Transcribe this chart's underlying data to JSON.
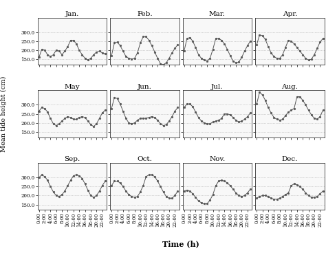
{
  "months": [
    "Jan.",
    "Feb.",
    "Mar.",
    "Apr.",
    "May",
    "Jun.",
    "Jul.",
    "Aug.",
    "Sep.",
    "Oct.",
    "Nov.",
    "Dec."
  ],
  "time_hours": [
    0,
    1,
    2,
    3,
    4,
    5,
    6,
    7,
    8,
    9,
    10,
    11,
    12,
    13,
    14,
    15,
    16,
    17,
    18,
    19,
    20,
    21,
    22,
    23
  ],
  "tide_data": {
    "Jan.": [
      160,
      205,
      200,
      175,
      165,
      175,
      200,
      195,
      175,
      195,
      220,
      255,
      255,
      235,
      200,
      175,
      155,
      145,
      155,
      175,
      190,
      195,
      185,
      180
    ],
    "Feb.": [
      170,
      240,
      245,
      225,
      195,
      165,
      155,
      150,
      155,
      185,
      240,
      275,
      275,
      255,
      225,
      190,
      155,
      125,
      120,
      130,
      155,
      185,
      210,
      230
    ],
    "Mar.": [
      195,
      265,
      270,
      250,
      215,
      175,
      155,
      145,
      140,
      155,
      205,
      265,
      265,
      255,
      235,
      205,
      170,
      140,
      130,
      135,
      160,
      195,
      225,
      250
    ],
    "Apr.": [
      230,
      285,
      280,
      260,
      220,
      185,
      165,
      155,
      155,
      175,
      215,
      255,
      250,
      235,
      215,
      195,
      175,
      155,
      145,
      150,
      175,
      210,
      245,
      265
    ],
    "May": [
      265,
      285,
      280,
      260,
      225,
      195,
      185,
      195,
      210,
      225,
      235,
      230,
      220,
      220,
      230,
      235,
      230,
      210,
      190,
      180,
      195,
      225,
      255,
      270
    ],
    "Jun.": [
      280,
      340,
      335,
      305,
      265,
      225,
      200,
      195,
      200,
      215,
      225,
      225,
      225,
      230,
      235,
      230,
      215,
      195,
      185,
      190,
      210,
      235,
      265,
      285
    ],
    "Jul.": [
      285,
      305,
      305,
      290,
      260,
      230,
      210,
      200,
      195,
      195,
      205,
      210,
      215,
      225,
      250,
      250,
      245,
      230,
      215,
      205,
      210,
      220,
      235,
      255
    ],
    "Aug.": [
      305,
      370,
      355,
      325,
      285,
      255,
      230,
      220,
      215,
      220,
      240,
      260,
      270,
      280,
      345,
      345,
      325,
      300,
      270,
      245,
      225,
      220,
      235,
      270
    ],
    "Sep.": [
      300,
      315,
      305,
      285,
      250,
      220,
      200,
      195,
      205,
      225,
      255,
      285,
      310,
      315,
      310,
      295,
      265,
      230,
      200,
      190,
      200,
      225,
      255,
      280
    ],
    "Oct.": [
      255,
      280,
      280,
      270,
      250,
      225,
      205,
      195,
      190,
      195,
      220,
      255,
      305,
      315,
      315,
      305,
      280,
      250,
      220,
      195,
      185,
      185,
      200,
      225
    ],
    "Nov.": [
      225,
      230,
      225,
      210,
      190,
      170,
      160,
      155,
      155,
      175,
      205,
      255,
      280,
      285,
      280,
      270,
      255,
      235,
      215,
      200,
      195,
      200,
      215,
      235
    ],
    "Dec.": [
      185,
      195,
      200,
      200,
      195,
      185,
      180,
      180,
      185,
      195,
      205,
      215,
      255,
      265,
      260,
      250,
      235,
      215,
      200,
      190,
      190,
      195,
      210,
      225
    ]
  },
  "ylim": [
    120,
    380
  ],
  "yticks": [
    150.0,
    200.0,
    250.0,
    300.0
  ],
  "xtick_labels": [
    "0:00",
    "2:00",
    "4:00",
    "6:00",
    "8:00",
    "10:00",
    "12:00",
    "14:00",
    "16:00",
    "18:00",
    "20:00",
    "22:00"
  ],
  "xtick_positions": [
    0,
    2,
    4,
    6,
    8,
    10,
    12,
    14,
    16,
    18,
    20,
    22
  ],
  "ylabel": "Mean tide height (cm)",
  "xlabel": "Time (h)",
  "line_color": "#555555",
  "marker": "o",
  "marker_size": 2.0,
  "grid_color": "#aaaaaa",
  "grid_style": "dotted",
  "title_fontsize": 7.5,
  "label_fontsize": 8,
  "tick_fontsize": 5.0,
  "fig_bgcolor": "#ffffff"
}
